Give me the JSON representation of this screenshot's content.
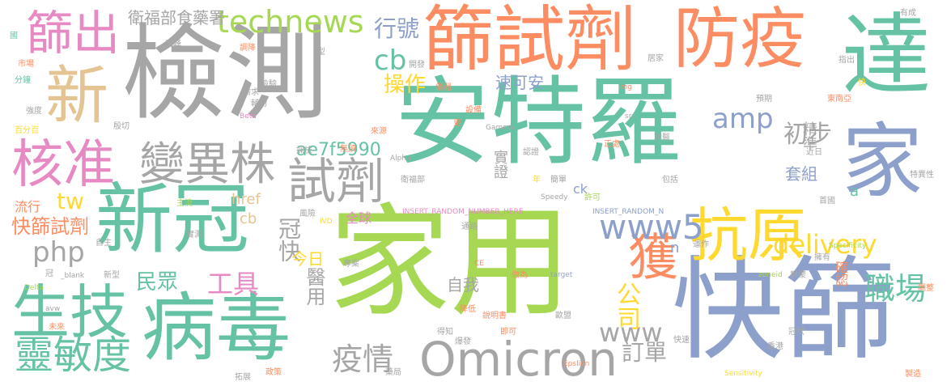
{
  "palette": {
    "gray": "#a6a6a6",
    "green": "#66c2a5",
    "orange": "#fc8d62",
    "blue": "#8da0cb",
    "pink": "#e78ac3",
    "lime": "#a6d854",
    "yellow": "#ffd92f",
    "tan": "#e5c494"
  },
  "words": {
    "安特羅": "安特羅",
    "家用": "家用",
    "檢測": "檢測",
    "快篩": "快篩",
    "新冠": "新冠",
    "病毒": "病毒",
    "篩試劑": "篩試劑",
    "防疫": "防疫",
    "達": "達",
    "生技": "生技",
    "家": "家",
    "抗原": "抗原",
    "新": "新",
    "篩出": "篩出",
    "核准": "核准",
    "Omicron": "Omicron",
    "試劑": "試劑",
    "獲": "獲",
    "變異株": "變異株",
    "靈敏度": "靈敏度",
    "technews": "technews",
    "www5": "www5",
    "delivery": "delivery",
    "www": "www",
    "職場": "職場",
    "amp": "amp",
    "初步": "初步",
    "疫情": "疫情",
    "cb": "cb",
    "ae7f5990": "ae7f5990",
    "php": "php",
    "tw": "tw",
    "快篩試劑": "快篩試劑",
    "工具": "工具",
    "行號": "行號",
    "操作": "操作",
    "衛福部食藥署": "衛福部食藥署",
    "公司": "公司",
    "訂單": "訂單",
    "冠快": "冠快",
    "民眾": "民眾",
    "醫用": "醫用",
    "今日": "今日",
    "自我": "自我",
    "速可安": "速可安",
    "精準": "精準",
    "套組": "套組",
    "實證": "實證",
    "確認": "確認",
    "流行": "流行",
    "全球": "全球",
    "href": "href",
    "ck": "ck",
    "a": "a",
    "n": "n",
    "cb_small": "cb",
    "INSERT_RANDOM_NUMBER_HERE": "INSERT_RANDOM_NUMBER_HERE",
    "INSERT_RANDOM_N": "INSERT_RANDOM_N",
    "Alpha": "Alpha",
    "Beta": "Beta",
    "Gamma": "Gamma",
    "Delta": "Delta",
    "Epslion": "Epslion",
    "Sensitivity": "Sensitivity",
    "Specificity": "Specificity",
    "Speedy": "Speedy",
    "IVD": "IVD",
    "CE": "CE",
    "img": "img",
    "src": "src",
    "target": "target",
    "_blank": "_blank",
    "zoneid": "zoneid",
    "avw": "avw",
    "衛福部": "衛福部",
    "高峰": "高峰",
    "調降": "調降",
    "開發": "開發",
    "居家": "居家",
    "指出": "指出",
    "有成": "有成",
    "市場": "市場",
    "分鐘": "分鐘",
    "強度": "強度",
    "百分百": "百分百",
    "殷切": "殷切",
    "需求": "需求",
    "輔助": "輔助",
    "檢驗": "檢驗",
    "儀器": "儀器",
    "設備": "設備",
    "更": "更",
    "來源": "來源",
    "無須": "無須",
    "採檢": "採檢",
    "認證": "認證",
    "年": "年",
    "簡單": "簡單",
    "許可": "許可",
    "正處": "正處",
    "就醫": "就醫",
    "近日": "近日",
    "包括": "包括",
    "首國": "首國",
    "特異性": "特異性",
    "東南亞": "東南亞",
    "快": "快",
    "預期": "預期",
    "主流": "主流",
    "風險": "風險",
    "實測": "實測",
    "通路": "通路",
    "自主": "自主",
    "新型": "新型",
    "冠": "冠",
    "專案": "專案",
    "做為": "做為",
    "運作": "運作",
    "擁有": "擁有",
    "群聚": "群聚",
    "降低": "降低",
    "說明書": "說明書",
    "歐盟": "歐盟",
    "即可": "即可",
    "得知": "得知",
    "爆發": "爆發",
    "藥局": "藥局",
    "政策": "政策",
    "拓展": "拓展",
    "未來": "未來",
    "快速": "快速",
    "香港": "香港",
    "冠狀": "冠狀",
    "調整": "調整",
    "製造": "製造",
    "國": "國",
    "型": "型"
  }
}
